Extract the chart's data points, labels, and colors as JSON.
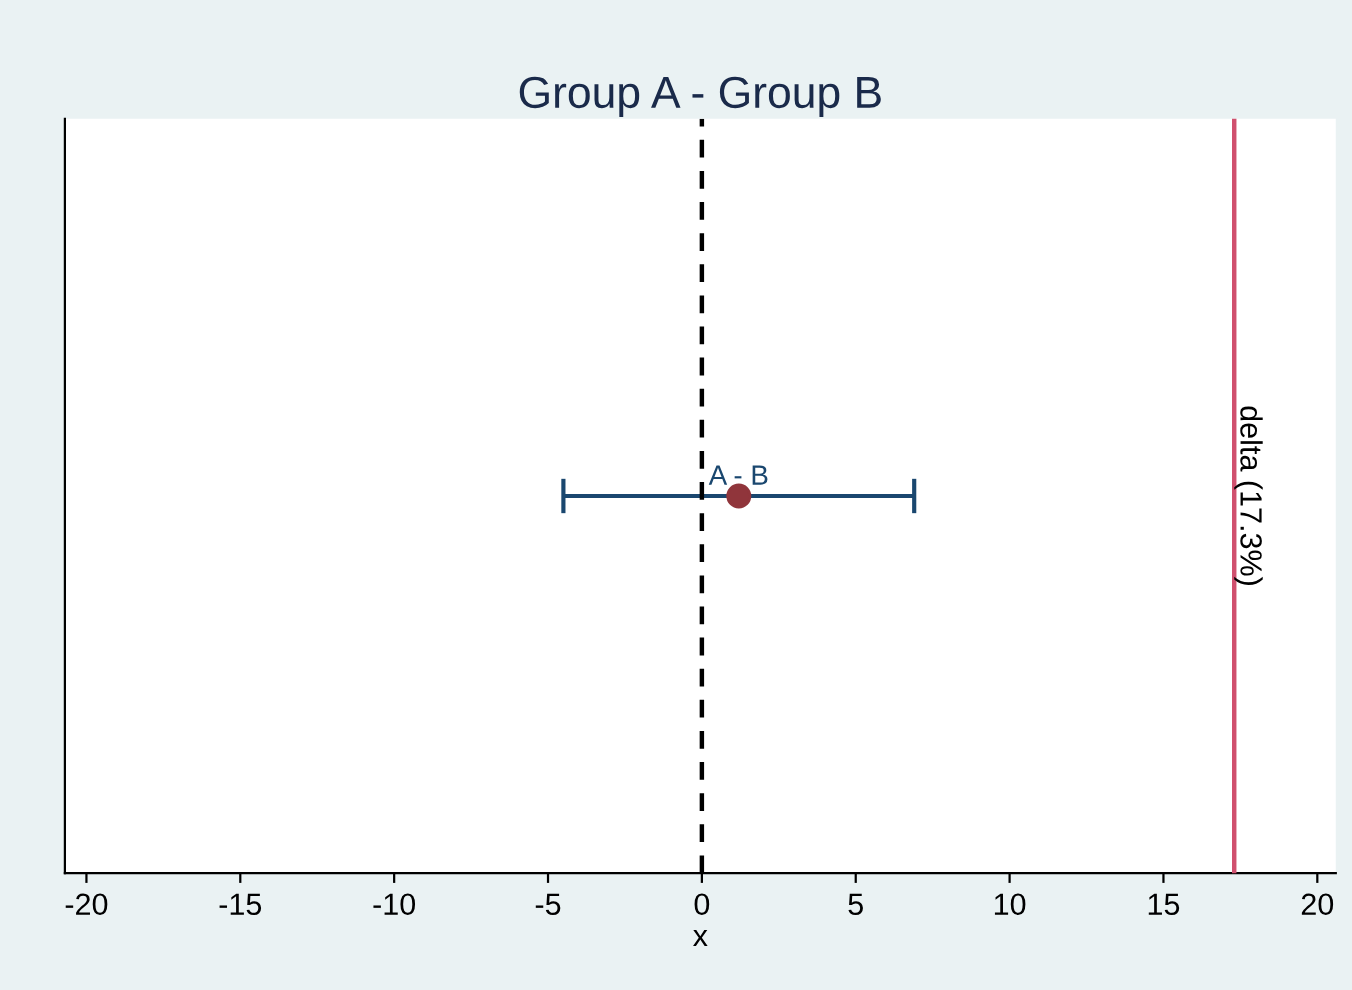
{
  "chart_data": {
    "type": "scatter",
    "orientation": "horizontal",
    "title": "Group A - Group B",
    "xlabel": "x",
    "categories": [
      null
    ],
    "series": [
      {
        "name": "A - B",
        "color": "#90353b",
        "values": [
          1.2
        ],
        "errors": [
          [
            -4.5,
            6.9
          ]
        ]
      }
    ],
    "xlim": [
      -20.7,
      20.6
    ],
    "xticks": [
      -20,
      -15,
      -10,
      -5,
      0,
      5,
      10,
      15,
      20
    ],
    "ref_lines": [
      {
        "axis": "x",
        "value": 0,
        "label": null,
        "color": "#000000",
        "line_style": "dashed"
      },
      {
        "axis": "x",
        "value": 17.3,
        "label": "delta (17.3%)",
        "color": "#d0506e",
        "line_style": "solid"
      }
    ],
    "tick_labels": "x",
    "grid": false,
    "legend": false,
    "marker": "circle"
  }
}
